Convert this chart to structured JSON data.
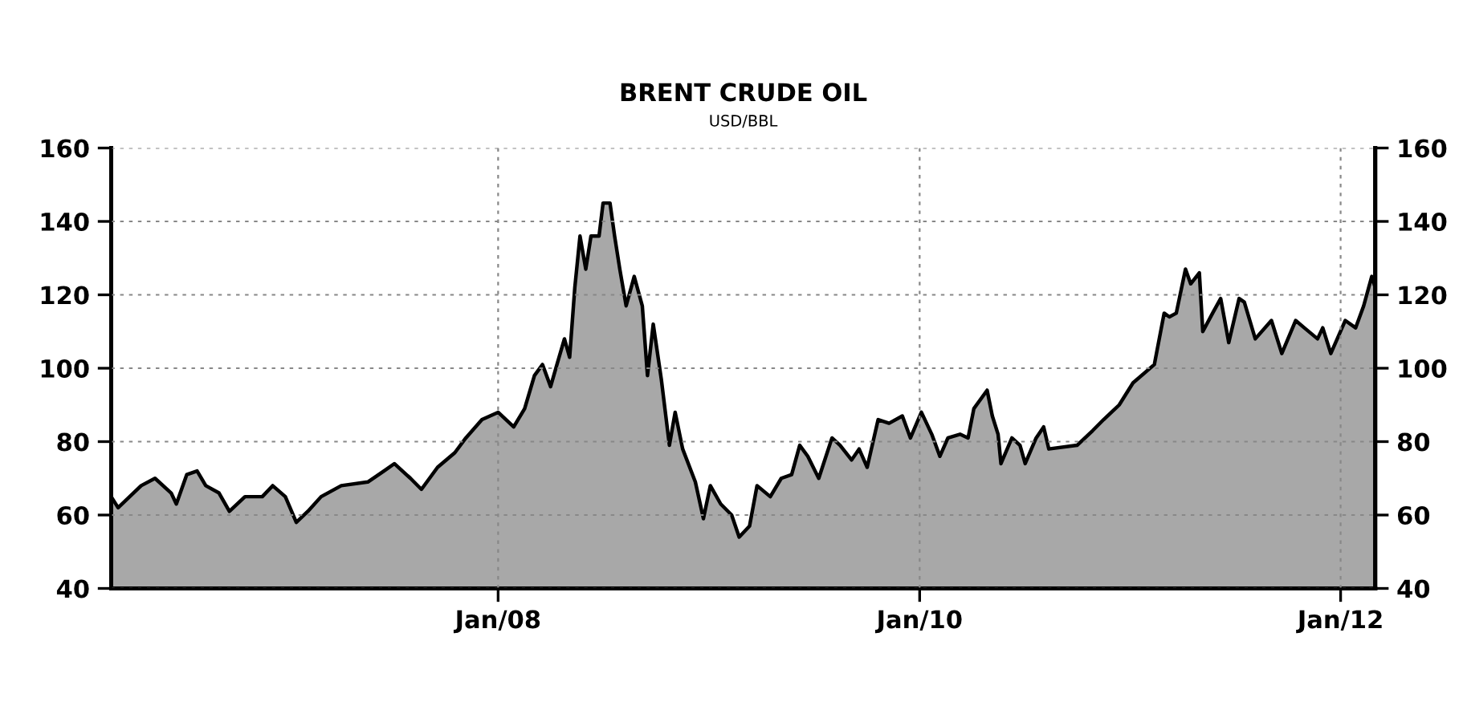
{
  "chart_data": {
    "type": "area",
    "title": "BRENT CRUDE OIL",
    "subtitle": "USD/BBL",
    "xlim": [
      "2006-03-01",
      "2012-03-01"
    ],
    "xticks": [
      {
        "value": "2008-01-01",
        "label": "Jan/08"
      },
      {
        "value": "2010-01-01",
        "label": "Jan/10"
      },
      {
        "value": "2012-01-01",
        "label": "Jan/12"
      }
    ],
    "ylim": [
      40,
      160
    ],
    "yticks": [
      40,
      60,
      80,
      100,
      120,
      140,
      160
    ],
    "y2lim": [
      40,
      160
    ],
    "y2ticks": [
      40,
      60,
      80,
      100,
      120,
      140,
      160
    ],
    "grid": true,
    "marker": "none",
    "line_style": "solid",
    "series": [
      {
        "color": "#a8a8a8",
        "x": [
          "2006-03-01",
          "2006-03-13",
          "2006-04-22",
          "2006-05-16",
          "2006-06-13",
          "2006-06-22",
          "2006-07-10",
          "2006-07-28",
          "2006-08-12",
          "2006-09-04",
          "2006-09-22",
          "2006-10-19",
          "2006-11-18",
          "2006-12-06",
          "2006-12-28",
          "2007-01-16",
          "2007-02-05",
          "2007-02-28",
          "2007-04-04",
          "2007-05-20",
          "2007-06-17",
          "2007-07-05",
          "2007-08-02",
          "2007-08-21",
          "2007-09-18",
          "2007-10-18",
          "2007-11-06",
          "2007-12-04",
          "2008-01-01",
          "2008-01-28",
          "2008-02-16",
          "2008-03-04",
          "2008-03-18",
          "2008-04-01",
          "2008-04-12",
          "2008-04-25",
          "2008-05-04",
          "2008-05-13",
          "2008-05-22",
          "2008-06-01",
          "2008-06-10",
          "2008-06-24",
          "2008-07-01",
          "2008-07-13",
          "2008-07-21",
          "2008-07-30",
          "2008-08-10",
          "2008-08-24",
          "2008-09-07",
          "2008-09-16",
          "2008-09-26",
          "2008-10-10",
          "2008-10-24",
          "2008-11-03",
          "2008-11-16",
          "2008-12-08",
          "2008-12-22",
          "2009-01-03",
          "2009-01-21",
          "2009-02-09",
          "2009-02-22",
          "2009-03-12",
          "2009-03-25",
          "2009-04-17",
          "2009-05-06",
          "2009-05-24",
          "2009-06-07",
          "2009-06-21",
          "2009-07-10",
          "2009-08-02",
          "2009-08-16",
          "2009-09-05",
          "2009-09-18",
          "2009-10-02",
          "2009-10-21",
          "2009-11-09",
          "2009-12-02",
          "2009-12-16",
          "2010-01-04",
          "2010-01-22",
          "2010-02-05",
          "2010-02-19",
          "2010-03-12",
          "2010-03-26",
          "2010-04-05",
          "2010-04-28",
          "2010-05-07",
          "2010-05-17",
          "2010-05-22",
          "2010-06-10",
          "2010-06-24",
          "2010-07-03",
          "2010-07-22",
          "2010-08-04",
          "2010-08-13",
          "2010-10-01",
          "2010-10-28",
          "2010-11-16",
          "2010-12-13",
          "2011-01-06",
          "2011-02-12",
          "2011-03-01",
          "2011-03-10",
          "2011-03-22",
          "2011-04-07",
          "2011-04-16",
          "2011-05-01",
          "2011-05-07",
          "2011-05-24",
          "2011-06-07",
          "2011-06-21",
          "2011-07-09",
          "2011-07-18",
          "2011-08-06",
          "2011-09-03",
          "2011-09-21",
          "2011-10-15",
          "2011-10-30",
          "2011-11-22",
          "2011-12-01",
          "2011-12-15",
          "2012-01-09",
          "2012-01-27",
          "2012-02-10",
          "2012-02-24",
          "2012-03-01"
        ],
        "values": [
          65,
          62,
          68,
          70,
          66,
          63,
          71,
          72,
          68,
          66,
          61,
          65,
          65,
          68,
          65,
          58,
          61,
          65,
          68,
          69,
          72,
          74,
          70,
          67,
          73,
          77,
          81,
          86,
          88,
          84,
          89,
          98,
          101,
          95,
          101,
          108,
          103,
          122,
          136,
          127,
          136,
          136,
          145,
          145,
          136,
          127,
          117,
          125,
          117,
          98,
          112,
          97,
          79,
          88,
          78,
          69,
          59,
          68,
          63,
          60,
          54,
          57,
          68,
          65,
          70,
          71,
          79,
          76,
          70,
          81,
          79,
          75,
          78,
          73,
          86,
          85,
          87,
          81,
          88,
          82,
          76,
          81,
          82,
          81,
          89,
          94,
          87,
          82,
          74,
          81,
          79,
          74,
          81,
          84,
          78,
          79,
          83,
          86,
          90,
          96,
          101,
          115,
          114,
          115,
          127,
          123,
          126,
          110,
          115,
          119,
          107,
          119,
          118,
          108,
          113,
          104,
          113,
          111,
          108,
          111,
          104,
          113,
          111,
          117,
          125,
          122
        ]
      }
    ]
  }
}
